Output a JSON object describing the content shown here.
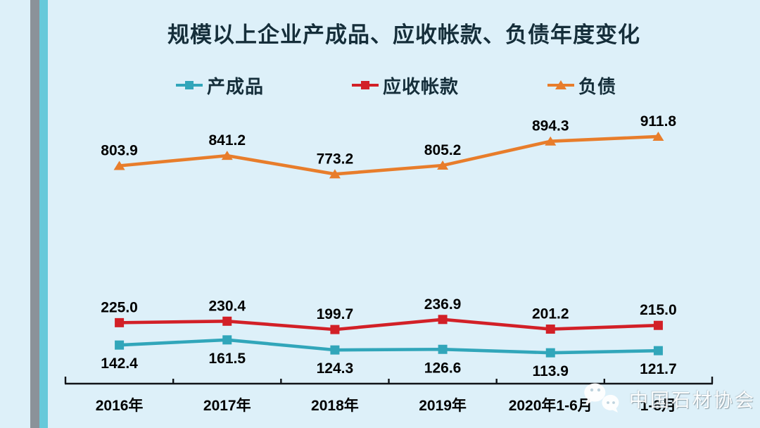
{
  "title": "规模以上企业产成品、应收帐款、负债年度变化",
  "watermark": {
    "label": "中国石材协会",
    "icon": "wechat-icon"
  },
  "colors": {
    "background": "#ddf0f9",
    "left_stripe_gray": "#8b9299",
    "left_stripe_teal": "#67c9da",
    "axis": "#111418",
    "data_label": "#000000",
    "title_text": "#152e3a"
  },
  "chart_data": {
    "type": "line",
    "title": "规模以上企业产成品、应收帐款、负债年度变化",
    "categories": [
      "2016年",
      "2017年",
      "2018年",
      "2019年",
      "2020年1-6月",
      "1-8月"
    ],
    "series": [
      {
        "name": "产成品",
        "color": "#31a6ba",
        "marker": "square",
        "label_position": "below",
        "values": [
          142.4,
          161.5,
          124.3,
          126.6,
          113.9,
          121.7
        ]
      },
      {
        "name": "应收帐款",
        "color": "#d22027",
        "marker": "square",
        "label_position": "above",
        "values": [
          225.0,
          230.4,
          199.7,
          236.9,
          201.2,
          215.0
        ]
      },
      {
        "name": "负债",
        "color": "#e87d2b",
        "marker": "triangle",
        "label_position": "above",
        "values": [
          803.9,
          841.2,
          773.2,
          805.2,
          894.3,
          911.8
        ]
      }
    ],
    "ylim": [
      0,
      1000
    ],
    "grid": false,
    "y_axis_visible": false,
    "data_labels": true,
    "legend_position": "top"
  }
}
